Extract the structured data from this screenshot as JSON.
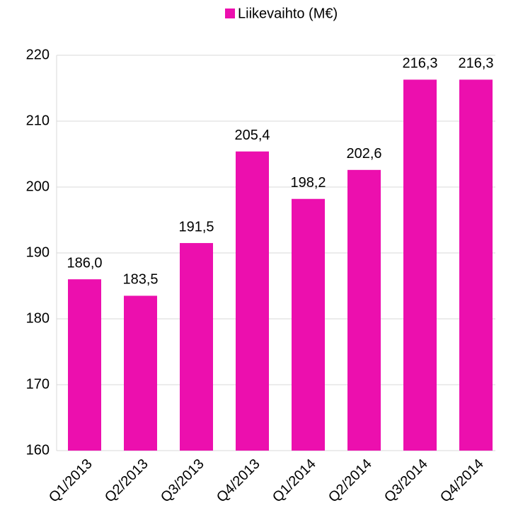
{
  "chart_data": {
    "type": "bar",
    "categories": [
      "Q1/2013",
      "Q2/2013",
      "Q3/2013",
      "Q4/2013",
      "Q1/2014",
      "Q2/2014",
      "Q3/2014",
      "Q4/2014"
    ],
    "series": [
      {
        "name": "Liikevaihto (M€)",
        "color": "#ec0fae",
        "values": [
          186.0,
          183.5,
          191.5,
          205.4,
          198.2,
          202.6,
          216.3,
          216.3
        ],
        "value_labels": [
          "186,0",
          "183,5",
          "191,5",
          "205,4",
          "198,2",
          "202,6",
          "216,3",
          "216,3"
        ]
      }
    ],
    "ylim": [
      160,
      220
    ],
    "yticks": [
      160,
      170,
      180,
      190,
      200,
      210,
      220
    ],
    "grid": true,
    "legend": "top"
  }
}
